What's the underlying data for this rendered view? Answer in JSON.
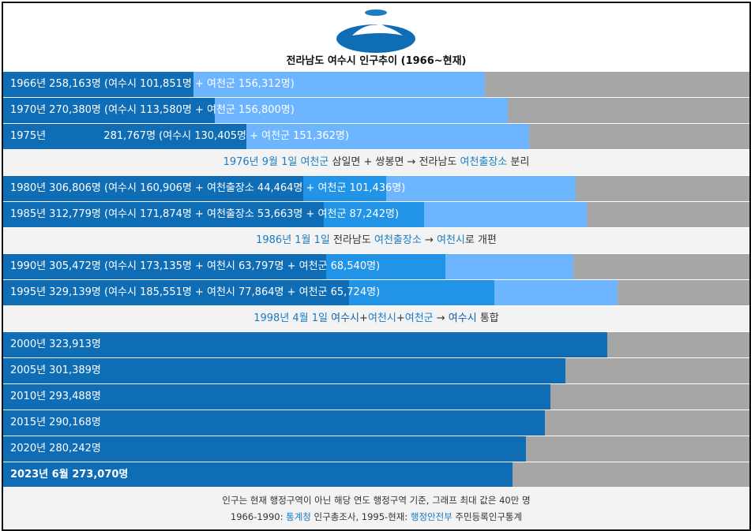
{
  "title": "전라남도 여수시 인구추이 (1966~현재)",
  "colors": {
    "yeosu_si": "#0f6db6",
    "yeocheon_si": "#2194e8",
    "yeocheon_office": "#2194e8",
    "yeocheon_gun": "#6db6ff",
    "remainder": "#a6a6a6",
    "merged": "#0f6db6"
  },
  "chart_data": {
    "type": "bar",
    "orientation": "horizontal",
    "stacked": true,
    "xlim": [
      0,
      400000
    ],
    "rows": [
      {
        "kind": "bar",
        "label": "1966년 258,163명 (여수시 101,851명 + 여천군 156,312명)",
        "segments": [
          {
            "name": "여수시",
            "value": 101851
          },
          {
            "name": "여천군",
            "value": 156312
          }
        ]
      },
      {
        "kind": "bar",
        "label": "1970년 270,380명 (여수시 113,580명 + 여천군 156,800명)",
        "segments": [
          {
            "name": "여수시",
            "value": 113580
          },
          {
            "name": "여천군",
            "value": 156800
          }
        ]
      },
      {
        "kind": "bar",
        "label": "1975년 　　　　　 281,767명 (여수시 130,405명 + 여천군 151,362명)",
        "segments": [
          {
            "name": "여수시",
            "value": 130405
          },
          {
            "name": "여천군",
            "value": 151362
          }
        ]
      },
      {
        "kind": "note",
        "parts": [
          {
            "t": "1976년 9월 1일 ",
            "c": "hl"
          },
          {
            "t": "여천군",
            "c": "hl"
          },
          {
            "t": " 삼일면 + 쌍봉면 → 전라남도 ",
            "c": ""
          },
          {
            "t": "여천출장소",
            "c": "hl"
          },
          {
            "t": " 분리",
            "c": ""
          }
        ]
      },
      {
        "kind": "bar",
        "label": "1980년 306,806명 (여수시 160,906명 + 여천출장소 44,464명 + 여천군 101,436명)",
        "segments": [
          {
            "name": "여수시",
            "value": 160906
          },
          {
            "name": "여천출장소",
            "value": 44464
          },
          {
            "name": "여천군",
            "value": 101436
          }
        ]
      },
      {
        "kind": "bar",
        "label": "1985년 312,779명 (여수시 171,874명 + 여천출장소 53,663명 + 여천군 87,242명)",
        "segments": [
          {
            "name": "여수시",
            "value": 171874
          },
          {
            "name": "여천출장소",
            "value": 53663
          },
          {
            "name": "여천군",
            "value": 87242
          }
        ]
      },
      {
        "kind": "note",
        "parts": [
          {
            "t": "1986년 1월 1일 ",
            "c": "hl"
          },
          {
            "t": "전라남도 ",
            "c": ""
          },
          {
            "t": "여천출장소",
            "c": "hl"
          },
          {
            "t": " → ",
            "c": ""
          },
          {
            "t": "여천시",
            "c": "hl"
          },
          {
            "t": "로 개편",
            "c": ""
          }
        ]
      },
      {
        "kind": "bar",
        "label": "1990년 305,472명 (여수시 173,135명 + 여천시 63,797명 + 여천군 68,540명)",
        "segments": [
          {
            "name": "여수시",
            "value": 173135
          },
          {
            "name": "여천시",
            "value": 63797
          },
          {
            "name": "여천군",
            "value": 68540
          }
        ]
      },
      {
        "kind": "bar",
        "label": "1995년 329,139명 (여수시 185,551명 + 여천시 77,864명 + 여천군 65,724명)",
        "segments": [
          {
            "name": "여수시",
            "value": 185551
          },
          {
            "name": "여천시",
            "value": 77864
          },
          {
            "name": "여천군",
            "value": 65724
          }
        ]
      },
      {
        "kind": "note",
        "parts": [
          {
            "t": "1998년 4월 1일 ",
            "c": "hl"
          },
          {
            "t": "여수시",
            "c": "dk"
          },
          {
            "t": "+",
            "c": ""
          },
          {
            "t": "여천시",
            "c": "hl"
          },
          {
            "t": "+",
            "c": ""
          },
          {
            "t": "여천군",
            "c": "hl"
          },
          {
            "t": " → ",
            "c": ""
          },
          {
            "t": "여수시",
            "c": "dk"
          },
          {
            "t": " 통합",
            "c": ""
          }
        ]
      },
      {
        "kind": "bar",
        "label": "2000년 323,913명",
        "segments": [
          {
            "name": "여수시",
            "value": 323913
          }
        ]
      },
      {
        "kind": "bar",
        "label": "2005년 301,389명",
        "segments": [
          {
            "name": "여수시",
            "value": 301389
          }
        ]
      },
      {
        "kind": "bar",
        "label": "2010년 293,488명",
        "segments": [
          {
            "name": "여수시",
            "value": 293488
          }
        ]
      },
      {
        "kind": "bar",
        "label": "2015년 290,168명",
        "segments": [
          {
            "name": "여수시",
            "value": 290168
          }
        ]
      },
      {
        "kind": "bar",
        "label": "2020년 280,242명",
        "segments": [
          {
            "name": "여수시",
            "value": 280242
          }
        ]
      },
      {
        "kind": "bar",
        "label": "2023년 6월 273,070명",
        "bold": true,
        "segments": [
          {
            "name": "여수시",
            "value": 273070
          }
        ]
      }
    ]
  },
  "footer": {
    "line1": "인구는 현재 행정구역이 아닌 해당 연도 행정구역 기준, 그래프 최대 값은 40만 명",
    "line2_pre": "1966-1990: ",
    "line2_link1": "통계청",
    "line2_mid": " 인구총조사, 1995-현재: ",
    "line2_link2": "행정안전부",
    "line2_post": " 주민등록인구통계"
  }
}
